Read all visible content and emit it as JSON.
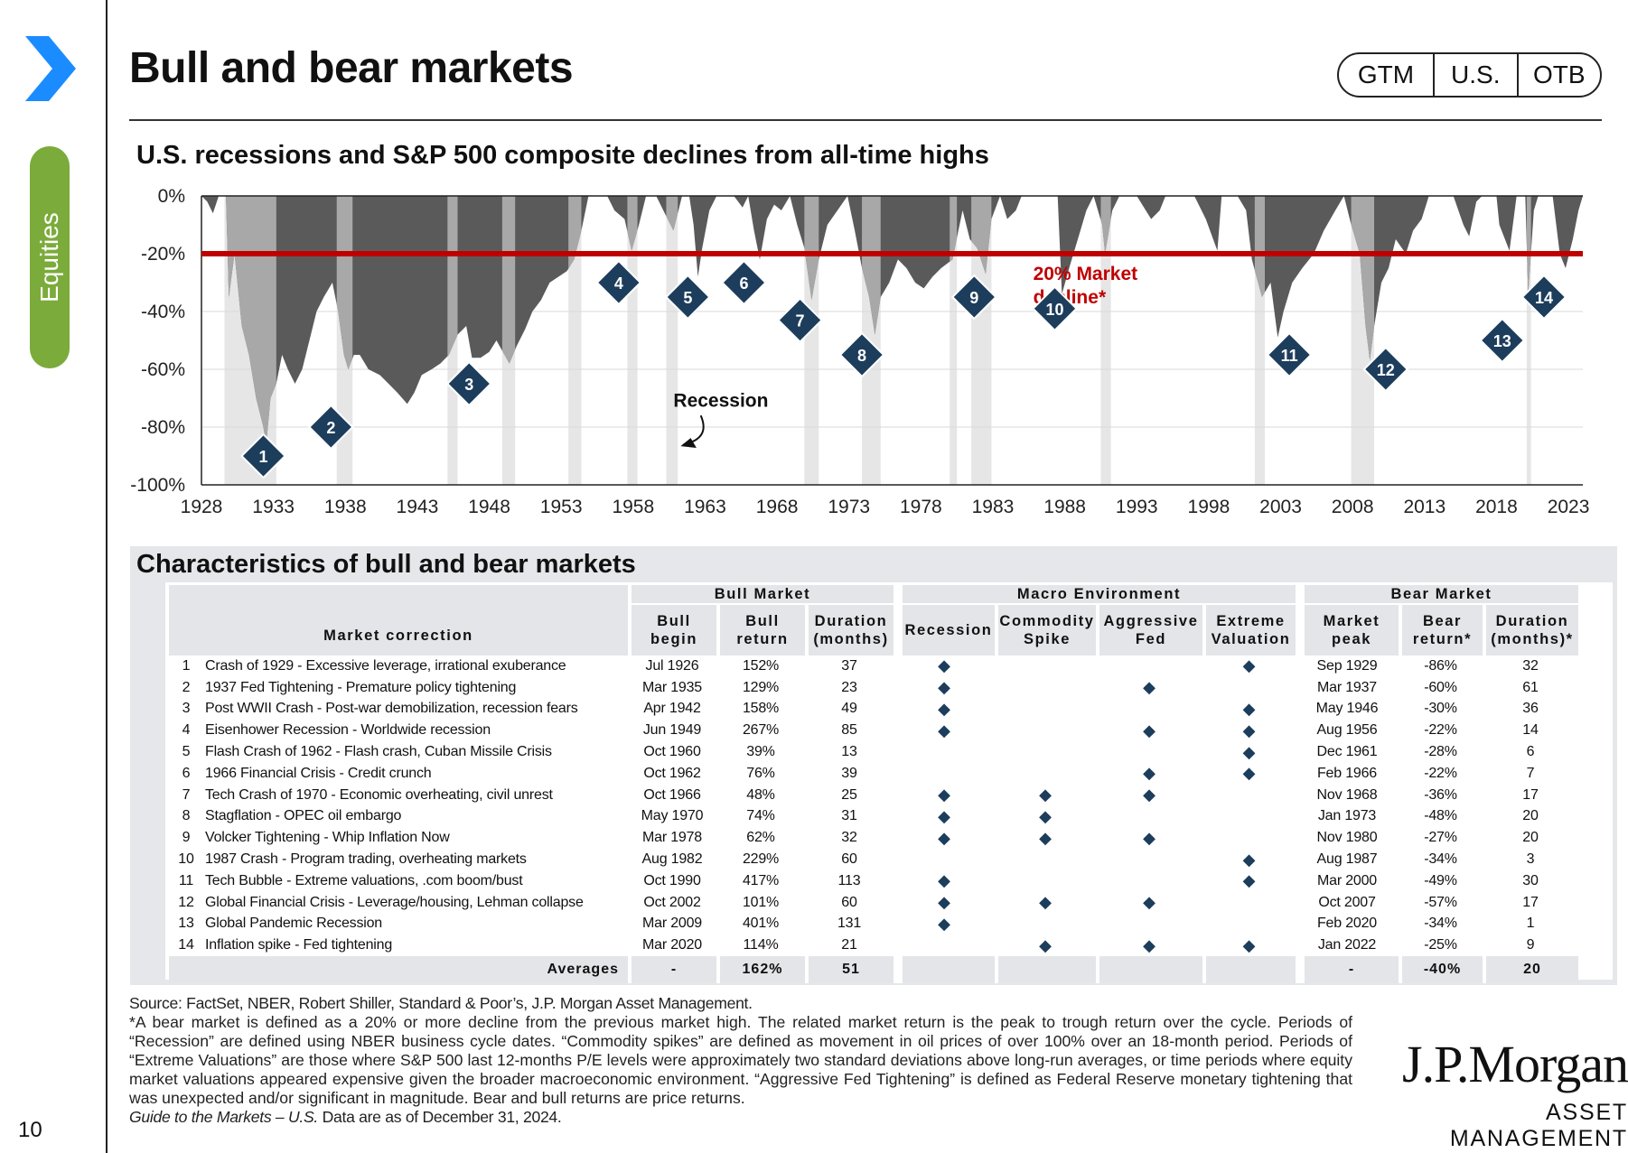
{
  "section_tab": "Equities",
  "page_number": "10",
  "page_title": "Bull and bear markets",
  "nav": [
    "GTM",
    "U.S.",
    "OTB"
  ],
  "chart_data": {
    "type": "area",
    "title": "U.S. recessions and S&P 500 composite declines from all-time highs",
    "ylim": [
      -100,
      0
    ],
    "yticks": [
      "0%",
      "-20%",
      "-40%",
      "-60%",
      "-80%",
      "-100%"
    ],
    "xlim": [
      1928,
      2024
    ],
    "xticks": [
      "1928",
      "1933",
      "1938",
      "1943",
      "1948",
      "1953",
      "1958",
      "1963",
      "1968",
      "1973",
      "1978",
      "1983",
      "1988",
      "1993",
      "1998",
      "2003",
      "2008",
      "2013",
      "2018",
      "2023"
    ],
    "threshold": {
      "value": -20,
      "label": "20% Market decline*",
      "color": "#c00000"
    },
    "recession_label": "Recession",
    "recessions": [
      [
        1929.6,
        1933.2
      ],
      [
        1937.4,
        1938.5
      ],
      [
        1945.1,
        1945.8
      ],
      [
        1948.9,
        1949.8
      ],
      [
        1953.5,
        1954.4
      ],
      [
        1957.6,
        1958.3
      ],
      [
        1960.3,
        1961.1
      ],
      [
        1969.9,
        1970.9
      ],
      [
        1973.9,
        1975.2
      ],
      [
        1980.0,
        1980.5
      ],
      [
        1981.5,
        1982.9
      ],
      [
        1990.5,
        1991.2
      ],
      [
        2001.2,
        2001.9
      ],
      [
        2007.9,
        2009.5
      ],
      [
        2020.1,
        2020.4
      ]
    ],
    "drawdown": [
      [
        1928,
        0
      ],
      [
        1928.4,
        -2
      ],
      [
        1928.8,
        -6
      ],
      [
        1929.2,
        0
      ],
      [
        1929.7,
        0
      ],
      [
        1929.9,
        -35
      ],
      [
        1930.3,
        -20
      ],
      [
        1930.8,
        -45
      ],
      [
        1931.3,
        -55
      ],
      [
        1931.8,
        -70
      ],
      [
        1932.3,
        -80
      ],
      [
        1932.5,
        -86
      ],
      [
        1932.8,
        -70
      ],
      [
        1933.2,
        -65
      ],
      [
        1933.6,
        -55
      ],
      [
        1934,
        -60
      ],
      [
        1934.5,
        -65
      ],
      [
        1935,
        -60
      ],
      [
        1935.5,
        -50
      ],
      [
        1936,
        -40
      ],
      [
        1936.5,
        -35
      ],
      [
        1937.1,
        -30
      ],
      [
        1937.5,
        -40
      ],
      [
        1937.9,
        -55
      ],
      [
        1938.2,
        -60
      ],
      [
        1938.6,
        -55
      ],
      [
        1939,
        -55
      ],
      [
        1939.6,
        -60
      ],
      [
        1940.4,
        -62
      ],
      [
        1941,
        -65
      ],
      [
        1941.6,
        -68
      ],
      [
        1942.3,
        -72
      ],
      [
        1942.8,
        -68
      ],
      [
        1943.3,
        -62
      ],
      [
        1944,
        -60
      ],
      [
        1944.6,
        -58
      ],
      [
        1945.2,
        -55
      ],
      [
        1945.8,
        -48
      ],
      [
        1946.4,
        -45
      ],
      [
        1946.8,
        -56
      ],
      [
        1947.4,
        -56
      ],
      [
        1948,
        -54
      ],
      [
        1948.5,
        -50
      ],
      [
        1949.4,
        -58
      ],
      [
        1949.9,
        -52
      ],
      [
        1950.5,
        -46
      ],
      [
        1951,
        -40
      ],
      [
        1951.6,
        -36
      ],
      [
        1952.2,
        -30
      ],
      [
        1952.8,
        -28
      ],
      [
        1953.4,
        -26
      ],
      [
        1953.9,
        -22
      ],
      [
        1954.4,
        -12
      ],
      [
        1954.9,
        0
      ],
      [
        1955.5,
        0
      ],
      [
        1956.2,
        0
      ],
      [
        1956.7,
        -5
      ],
      [
        1957.4,
        -8
      ],
      [
        1957.9,
        -19
      ],
      [
        1958.4,
        -10
      ],
      [
        1958.9,
        0
      ],
      [
        1959.6,
        0
      ],
      [
        1960.4,
        -8
      ],
      [
        1960.8,
        -12
      ],
      [
        1961.4,
        0
      ],
      [
        1961.9,
        0
      ],
      [
        1962.2,
        -10
      ],
      [
        1962.5,
        -28
      ],
      [
        1962.8,
        -18
      ],
      [
        1963.3,
        -5
      ],
      [
        1963.8,
        0
      ],
      [
        1965,
        0
      ],
      [
        1965.6,
        -4
      ],
      [
        1966,
        0
      ],
      [
        1966.4,
        -12
      ],
      [
        1966.8,
        -22
      ],
      [
        1967.3,
        -8
      ],
      [
        1967.8,
        -3
      ],
      [
        1968.3,
        -5
      ],
      [
        1968.9,
        0
      ],
      [
        1969.4,
        -10
      ],
      [
        1969.9,
        -18
      ],
      [
        1970.4,
        -36
      ],
      [
        1970.9,
        -22
      ],
      [
        1971.5,
        -10
      ],
      [
        1972.2,
        -5
      ],
      [
        1972.9,
        0
      ],
      [
        1973.4,
        -12
      ],
      [
        1973.9,
        -25
      ],
      [
        1974.4,
        -35
      ],
      [
        1974.8,
        -48
      ],
      [
        1975.2,
        -35
      ],
      [
        1975.8,
        -30
      ],
      [
        1976.4,
        -22
      ],
      [
        1977,
        -25
      ],
      [
        1977.6,
        -30
      ],
      [
        1978.2,
        -32
      ],
      [
        1978.8,
        -28
      ],
      [
        1979.4,
        -25
      ],
      [
        1980.2,
        -22
      ],
      [
        1980.6,
        -12
      ],
      [
        1980.9,
        -5
      ],
      [
        1981.4,
        -15
      ],
      [
        1981.9,
        -18
      ],
      [
        1982.5,
        -27
      ],
      [
        1982.9,
        -8
      ],
      [
        1983.5,
        0
      ],
      [
        1984,
        -8
      ],
      [
        1984.6,
        -5
      ],
      [
        1985,
        0
      ],
      [
        1986,
        0
      ],
      [
        1987.5,
        0
      ],
      [
        1987.8,
        -34
      ],
      [
        1988.3,
        -25
      ],
      [
        1988.9,
        -15
      ],
      [
        1989.5,
        -5
      ],
      [
        1990,
        0
      ],
      [
        1990.6,
        -10
      ],
      [
        1990.8,
        -20
      ],
      [
        1991.3,
        -5
      ],
      [
        1991.8,
        0
      ],
      [
        1993,
        0
      ],
      [
        1994,
        -8
      ],
      [
        1994.6,
        -5
      ],
      [
        1995,
        0
      ],
      [
        1997,
        0
      ],
      [
        1997.8,
        -8
      ],
      [
        1998.6,
        -19
      ],
      [
        1998.9,
        0
      ],
      [
        2000,
        0
      ],
      [
        2000.6,
        -5
      ],
      [
        2001,
        -22
      ],
      [
        2001.7,
        -35
      ],
      [
        2002.3,
        -30
      ],
      [
        2002.8,
        -49
      ],
      [
        2003.2,
        -40
      ],
      [
        2003.8,
        -30
      ],
      [
        2004.5,
        -25
      ],
      [
        2005.3,
        -20
      ],
      [
        2006,
        -12
      ],
      [
        2006.8,
        -5
      ],
      [
        2007.4,
        0
      ],
      [
        2007.9,
        -10
      ],
      [
        2008.5,
        -20
      ],
      [
        2008.9,
        -45
      ],
      [
        2009.2,
        -57
      ],
      [
        2009.5,
        -45
      ],
      [
        2010,
        -30
      ],
      [
        2010.5,
        -25
      ],
      [
        2011,
        -15
      ],
      [
        2011.7,
        -20
      ],
      [
        2012.2,
        -12
      ],
      [
        2012.8,
        -8
      ],
      [
        2013.3,
        0
      ],
      [
        2015,
        0
      ],
      [
        2015.7,
        -10
      ],
      [
        2016.1,
        -14
      ],
      [
        2016.6,
        -2
      ],
      [
        2017,
        0
      ],
      [
        2018,
        0
      ],
      [
        2018.2,
        -10
      ],
      [
        2018.9,
        -19
      ],
      [
        2019.4,
        0
      ],
      [
        2020,
        0
      ],
      [
        2020.2,
        -34
      ],
      [
        2020.6,
        -5
      ],
      [
        2020.9,
        0
      ],
      [
        2021.9,
        0
      ],
      [
        2022.4,
        -20
      ],
      [
        2022.8,
        -25
      ],
      [
        2023.3,
        -15
      ],
      [
        2023.7,
        -5
      ],
      [
        2024,
        0
      ]
    ],
    "markers": [
      {
        "n": "1",
        "x": 1932.3,
        "y": -90
      },
      {
        "n": "2",
        "x": 1937.0,
        "y": -80
      },
      {
        "n": "3",
        "x": 1946.6,
        "y": -65
      },
      {
        "n": "4",
        "x": 1957.0,
        "y": -30
      },
      {
        "n": "5",
        "x": 1961.8,
        "y": -35
      },
      {
        "n": "6",
        "x": 1965.7,
        "y": -30
      },
      {
        "n": "7",
        "x": 1969.6,
        "y": -43
      },
      {
        "n": "8",
        "x": 1973.9,
        "y": -55
      },
      {
        "n": "9",
        "x": 1981.7,
        "y": -35
      },
      {
        "n": "10",
        "x": 1987.3,
        "y": -39
      },
      {
        "n": "11",
        "x": 2003.6,
        "y": -55
      },
      {
        "n": "12",
        "x": 2010.3,
        "y": -60
      },
      {
        "n": "13",
        "x": 2018.4,
        "y": -50
      },
      {
        "n": "14",
        "x": 2021.3,
        "y": -35
      }
    ]
  },
  "table": {
    "title": "Characteristics of bull and bear markets",
    "groups": {
      "bull": "Bull Market",
      "macro": "Macro Environment",
      "bear": "Bear Market"
    },
    "columns": {
      "correction": "Market correction",
      "bull_begin": [
        "Bull",
        "begin"
      ],
      "bull_return": [
        "Bull",
        "return"
      ],
      "bull_duration": [
        "Duration",
        "(months)"
      ],
      "recession": "Recession",
      "commodity": [
        "Commodity",
        "Spike"
      ],
      "aggressive": [
        "Aggressive",
        "Fed"
      ],
      "extreme": [
        "Extreme",
        "Valuation"
      ],
      "market_peak": [
        "Market",
        "peak"
      ],
      "bear_return": [
        "Bear",
        "return*"
      ],
      "bear_duration": [
        "Duration",
        "(months)*"
      ]
    },
    "marker_symbol": "◆",
    "rows": [
      {
        "n": "1",
        "desc": "Crash of 1929 - Excessive leverage, irrational exuberance",
        "begin": "Jul 1926",
        "ret": "152%",
        "dur": "37",
        "rec": true,
        "com": false,
        "fed": false,
        "val": true,
        "peak": "Sep 1929",
        "bret": "-86%",
        "bdur": "32"
      },
      {
        "n": "2",
        "desc": "1937 Fed Tightening - Premature policy tightening",
        "begin": "Mar 1935",
        "ret": "129%",
        "dur": "23",
        "rec": true,
        "com": false,
        "fed": true,
        "val": false,
        "peak": "Mar 1937",
        "bret": "-60%",
        "bdur": "61"
      },
      {
        "n": "3",
        "desc": "Post WWII Crash - Post-war demobilization, recession fears",
        "begin": "Apr 1942",
        "ret": "158%",
        "dur": "49",
        "rec": true,
        "com": false,
        "fed": false,
        "val": true,
        "peak": "May 1946",
        "bret": "-30%",
        "bdur": "36"
      },
      {
        "n": "4",
        "desc": "Eisenhower Recession - Worldwide recession",
        "begin": "Jun 1949",
        "ret": "267%",
        "dur": "85",
        "rec": true,
        "com": false,
        "fed": true,
        "val": true,
        "peak": "Aug 1956",
        "bret": "-22%",
        "bdur": "14"
      },
      {
        "n": "5",
        "desc": "Flash Crash of 1962 - Flash crash, Cuban Missile Crisis",
        "begin": "Oct 1960",
        "ret": "39%",
        "dur": "13",
        "rec": false,
        "com": false,
        "fed": false,
        "val": true,
        "peak": "Dec 1961",
        "bret": "-28%",
        "bdur": "6"
      },
      {
        "n": "6",
        "desc": "1966 Financial Crisis - Credit crunch",
        "begin": "Oct 1962",
        "ret": "76%",
        "dur": "39",
        "rec": false,
        "com": false,
        "fed": true,
        "val": true,
        "peak": "Feb 1966",
        "bret": "-22%",
        "bdur": "7"
      },
      {
        "n": "7",
        "desc": "Tech Crash of 1970 - Economic overheating, civil unrest",
        "begin": "Oct 1966",
        "ret": "48%",
        "dur": "25",
        "rec": true,
        "com": true,
        "fed": true,
        "val": false,
        "peak": "Nov 1968",
        "bret": "-36%",
        "bdur": "17"
      },
      {
        "n": "8",
        "desc": "Stagflation - OPEC oil embargo",
        "begin": "May 1970",
        "ret": "74%",
        "dur": "31",
        "rec": true,
        "com": true,
        "fed": false,
        "val": false,
        "peak": "Jan 1973",
        "bret": "-48%",
        "bdur": "20"
      },
      {
        "n": "9",
        "desc": "Volcker Tightening - Whip Inflation Now",
        "begin": "Mar 1978",
        "ret": "62%",
        "dur": "32",
        "rec": true,
        "com": true,
        "fed": true,
        "val": false,
        "peak": "Nov 1980",
        "bret": "-27%",
        "bdur": "20"
      },
      {
        "n": "10",
        "desc": "1987 Crash - Program trading, overheating markets",
        "begin": "Aug 1982",
        "ret": "229%",
        "dur": "60",
        "rec": false,
        "com": false,
        "fed": false,
        "val": true,
        "peak": "Aug 1987",
        "bret": "-34%",
        "bdur": "3"
      },
      {
        "n": "11",
        "desc": "Tech Bubble - Extreme valuations, .com boom/bust",
        "begin": "Oct 1990",
        "ret": "417%",
        "dur": "113",
        "rec": true,
        "com": false,
        "fed": false,
        "val": true,
        "peak": "Mar 2000",
        "bret": "-49%",
        "bdur": "30"
      },
      {
        "n": "12",
        "desc": "Global Financial Crisis - Leverage/housing, Lehman collapse",
        "begin": "Oct 2002",
        "ret": "101%",
        "dur": "60",
        "rec": true,
        "com": true,
        "fed": true,
        "val": false,
        "peak": "Oct 2007",
        "bret": "-57%",
        "bdur": "17"
      },
      {
        "n": "13",
        "desc": "Global Pandemic Recession",
        "begin": "Mar 2009",
        "ret": "401%",
        "dur": "131",
        "rec": true,
        "com": false,
        "fed": false,
        "val": false,
        "peak": "Feb 2020",
        "bret": "-34%",
        "bdur": "1"
      },
      {
        "n": "14",
        "desc": "Inflation spike - Fed tightening",
        "begin": "Mar 2020",
        "ret": "114%",
        "dur": "21",
        "rec": false,
        "com": true,
        "fed": true,
        "val": true,
        "peak": "Jan 2022",
        "bret": "-25%",
        "bdur": "9"
      }
    ],
    "averages": {
      "label": "Averages",
      "begin": "-",
      "ret": "162%",
      "dur": "51",
      "peak": "-",
      "bret": "-40%",
      "bdur": "20"
    }
  },
  "footnotes": {
    "source": "Source: FactSet, NBER, Robert Shiller, Standard & Poor’s, J.P. Morgan Asset Management.",
    "definitions": "*A bear market is defined as a 20% or more decline from the previous market high. The related market return is the peak to trough return over the cycle. Periods of “Recession” are defined using NBER business cycle dates. “Commodity spikes” are defined as movement in oil prices of over 100% over an 18-month period. Periods of “Extreme Valuations” are those where S&P 500 last 12-months P/E levels were approximately two standard deviations above long-run averages, or time periods where equity market valuations appeared expensive given the broader macroeconomic environment. “Aggressive Fed Tightening” is defined as Federal Reserve monetary tightening that was unexpected and/or significant in magnitude. Bear and bull returns are price returns.",
    "guide_italic": "Guide to the Markets – U.S.",
    "guide_rest": " Data are as of December 31, 2024."
  },
  "logo": {
    "main": "J.P.Morgan",
    "sub": "ASSET MANAGEMENT"
  },
  "colors": {
    "accent_blue": "#1a8cff",
    "green_tab": "#7bab3a",
    "marker": "#1d3d5c",
    "threshold_red": "#c00000",
    "area_dark": "#5a5a5a",
    "area_light": "#a8a8a8",
    "recession_band": "#e6e6e6"
  }
}
